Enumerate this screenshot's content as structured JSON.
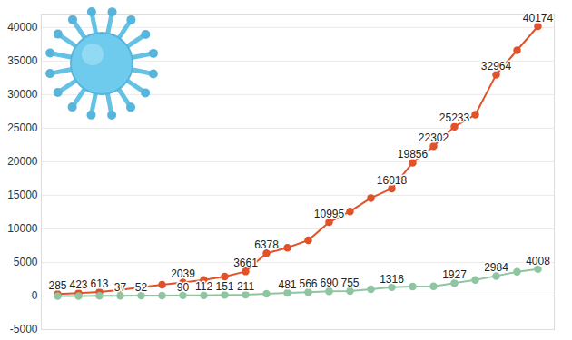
{
  "chart_data": {
    "type": "line",
    "categories": [
      null,
      null,
      null,
      null,
      null,
      null,
      null,
      null,
      null,
      null,
      null,
      null,
      null,
      null,
      null,
      null,
      null,
      null,
      null,
      null,
      null,
      null,
      null,
      null
    ],
    "series": [
      {
        "color": "#e0522b",
        "marker": "circle",
        "line_style": "solid",
        "values": [
          285,
          423,
          613,
          900,
          1300,
          1700,
          2039,
          2400,
          2900,
          3661,
          6378,
          7200,
          8300,
          10995,
          12600,
          14600,
          16018,
          19856,
          22302,
          25233,
          27000,
          32964,
          36600,
          40174
        ],
        "value_labels": [
          "285",
          "423",
          "613",
          null,
          null,
          null,
          "2039",
          null,
          null,
          "3661",
          "6378",
          null,
          null,
          "10995",
          null,
          null,
          "16018",
          "19856",
          "22302",
          "25233",
          null,
          "32964",
          null,
          "40174"
        ]
      },
      {
        "color": "#8fc5a0",
        "marker": "circle",
        "line_style": "solid",
        "values": [
          6,
          9,
          17,
          37,
          52,
          70,
          90,
          112,
          151,
          211,
          350,
          481,
          566,
          690,
          755,
          1000,
          1316,
          1400,
          1450,
          1927,
          2400,
          2984,
          3600,
          4008
        ],
        "value_labels": [
          null,
          null,
          null,
          "37",
          "52",
          null,
          "90",
          "112",
          "151",
          "211",
          null,
          "481",
          "566",
          "690",
          "755",
          null,
          "1316",
          null,
          null,
          "1927",
          null,
          "2984",
          null,
          "4008"
        ]
      }
    ],
    "ylim": [
      -5000,
      42000
    ],
    "yticks": [
      -5000,
      0,
      5000,
      10000,
      15000,
      20000,
      25000,
      30000,
      35000,
      40000
    ],
    "grid": true,
    "data_labels": true,
    "tick_labels": "y"
  }
}
